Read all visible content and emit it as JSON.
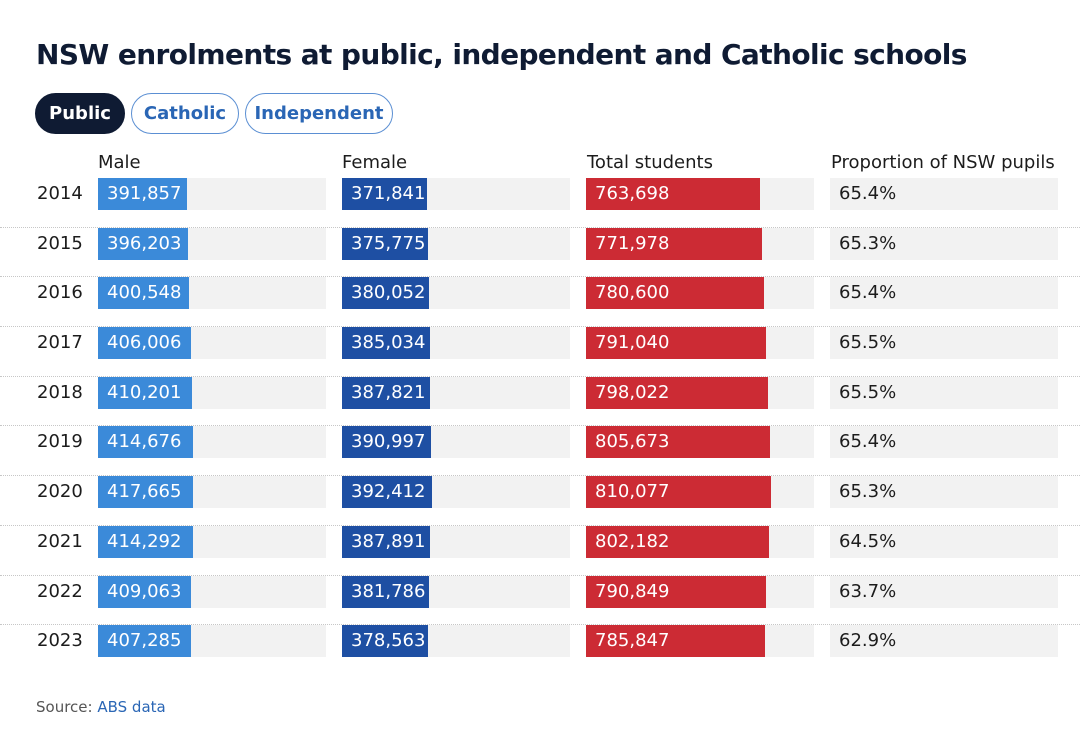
{
  "chart_data": {
    "type": "table",
    "title": "NSW enrolments at public, independent and Catholic schools",
    "tabs": [
      {
        "label": "Public",
        "active": true
      },
      {
        "label": "Catholic",
        "active": false
      },
      {
        "label": "Independent",
        "active": false
      }
    ],
    "columns": [
      "Male",
      "Female",
      "Total students",
      "Proportion of NSW pupils"
    ],
    "scale_max": 1000000,
    "rows": [
      {
        "year": "2014",
        "male": 391857,
        "female": 371841,
        "total": 763698,
        "proportion": "65.4%"
      },
      {
        "year": "2015",
        "male": 396203,
        "female": 375775,
        "total": 771978,
        "proportion": "65.3%"
      },
      {
        "year": "2016",
        "male": 400548,
        "female": 380052,
        "total": 780600,
        "proportion": "65.4%"
      },
      {
        "year": "2017",
        "male": 406006,
        "female": 385034,
        "total": 791040,
        "proportion": "65.5%"
      },
      {
        "year": "2018",
        "male": 410201,
        "female": 387821,
        "total": 798022,
        "proportion": "65.5%"
      },
      {
        "year": "2019",
        "male": 414676,
        "female": 390997,
        "total": 805673,
        "proportion": "65.4%"
      },
      {
        "year": "2020",
        "male": 417665,
        "female": 392412,
        "total": 810077,
        "proportion": "65.3%"
      },
      {
        "year": "2021",
        "male": 414292,
        "female": 387891,
        "total": 802182,
        "proportion": "64.5%"
      },
      {
        "year": "2022",
        "male": 409063,
        "female": 381786,
        "total": 790849,
        "proportion": "63.7%"
      },
      {
        "year": "2023",
        "male": 407285,
        "female": 378563,
        "total": 785847,
        "proportion": "62.9%"
      }
    ],
    "source_prefix": "Source: ",
    "source_link": "ABS data"
  },
  "colors": {
    "male": "#3b8ad9",
    "female": "#1e4fa3",
    "total": "#cc2b34",
    "track": "#f2f2f2",
    "active_tab": "#0f1b33"
  }
}
